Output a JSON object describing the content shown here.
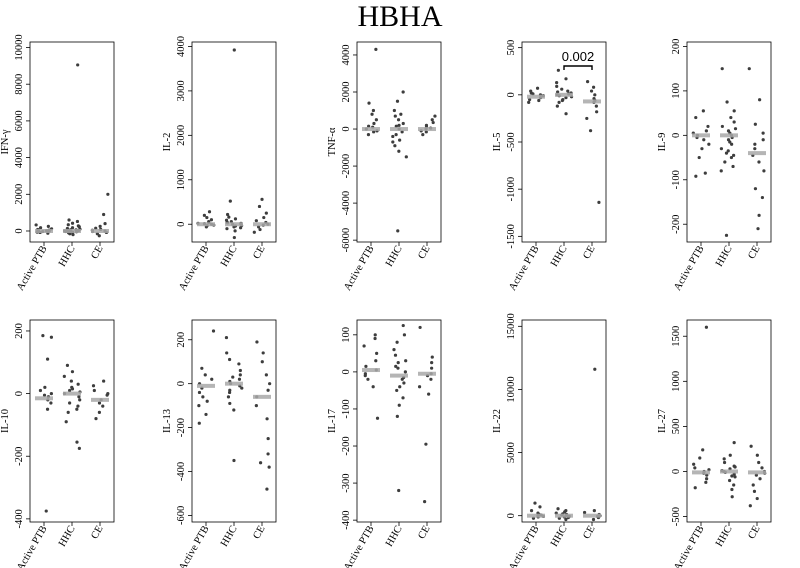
{
  "title": "HBHA",
  "colors": {
    "point": "#3d3d3d",
    "median": "#a8a8a8",
    "frame": "#000000"
  },
  "chart_data": [
    {
      "type": "scatter",
      "ylabel": "IFN-γ",
      "categories": [
        "Active PTB",
        "HHC",
        "CE"
      ],
      "ylim": [
        -600,
        10300
      ],
      "yticks": [
        0,
        2000,
        4000,
        6000,
        8000,
        10000
      ],
      "medians": [
        0,
        0,
        0
      ],
      "series": [
        {
          "values": [
            -120,
            -60,
            -30,
            0,
            20,
            50,
            80,
            120,
            180,
            250,
            330,
            -80,
            10
          ]
        },
        {
          "values": [
            -200,
            -150,
            -100,
            -60,
            -30,
            0,
            20,
            40,
            70,
            100,
            140,
            180,
            230,
            280,
            340,
            420,
            520,
            600,
            9050,
            -80,
            -40,
            10,
            60
          ]
        },
        {
          "values": [
            -260,
            -150,
            -80,
            -30,
            0,
            40,
            90,
            150,
            250,
            400,
            900,
            2000
          ]
        }
      ]
    },
    {
      "type": "scatter",
      "ylabel": "IL-2",
      "categories": [
        "Active PTB",
        "HHC",
        "CE"
      ],
      "ylim": [
        -400,
        4100
      ],
      "yticks": [
        0,
        1000,
        2000,
        3000,
        4000
      ],
      "medians": [
        0,
        0,
        0
      ],
      "series": [
        {
          "values": [
            -60,
            -30,
            0,
            20,
            40,
            60,
            100,
            150,
            200,
            280,
            -20,
            10
          ]
        },
        {
          "values": [
            -300,
            -150,
            -100,
            -60,
            -30,
            0,
            20,
            40,
            60,
            90,
            120,
            160,
            220,
            520,
            3920,
            -80,
            -40,
            10,
            30
          ]
        },
        {
          "values": [
            -180,
            -120,
            -60,
            -20,
            0,
            40,
            80,
            150,
            250,
            400,
            560
          ]
        }
      ]
    },
    {
      "type": "scatter",
      "ylabel": "TNF-α",
      "categories": [
        "Active PTB",
        "HHC",
        "CE"
      ],
      "ylim": [
        -6100,
        4700
      ],
      "yticks": [
        -6000,
        -4000,
        -2000,
        0,
        2000,
        4000
      ],
      "medians": [
        0,
        0,
        0
      ],
      "series": [
        {
          "values": [
            -300,
            -150,
            0,
            150,
            300,
            500,
            800,
            1000,
            1400,
            4300,
            -100,
            100
          ]
        },
        {
          "values": [
            -5500,
            -1500,
            -1200,
            -900,
            -600,
            -300,
            -150,
            0,
            150,
            300,
            500,
            700,
            1000,
            1500,
            2000,
            -400,
            200,
            -700,
            800
          ]
        },
        {
          "values": [
            -300,
            -150,
            0,
            100,
            200,
            350,
            500,
            700,
            -100,
            50
          ]
        }
      ]
    },
    {
      "type": "scatter",
      "ylabel": "IL-5",
      "categories": [
        "Active PTB",
        "HHC",
        "CE"
      ],
      "ylim": [
        -1560,
        560
      ],
      "yticks": [
        -1500,
        -1000,
        -500,
        0,
        500
      ],
      "medians": [
        -20,
        0,
        -70
      ],
      "annotation": {
        "text": "0.002",
        "from": 1,
        "to": 2
      },
      "series": [
        {
          "values": [
            -80,
            -50,
            -30,
            -10,
            0,
            20,
            40,
            70,
            -60,
            10
          ]
        },
        {
          "values": [
            -200,
            -120,
            -80,
            -50,
            -30,
            -10,
            0,
            20,
            40,
            60,
            90,
            130,
            170,
            260,
            -60,
            10,
            30,
            -20
          ]
        },
        {
          "values": [
            -1140,
            -380,
            -250,
            -180,
            -120,
            -80,
            -40,
            0,
            40,
            80,
            140,
            -60
          ]
        }
      ]
    },
    {
      "type": "scatter",
      "ylabel": "IL-9",
      "categories": [
        "Active PTB",
        "HHC",
        "CE"
      ],
      "ylim": [
        -240,
        210
      ],
      "yticks": [
        -200,
        -100,
        0,
        100,
        200
      ],
      "medians": [
        0,
        0,
        -40
      ],
      "series": [
        {
          "values": [
            -92,
            -85,
            -50,
            -30,
            -20,
            -5,
            0,
            10,
            20,
            40,
            55,
            -10,
            5
          ]
        },
        {
          "values": [
            -225,
            -80,
            -70,
            -60,
            -50,
            -40,
            -30,
            -20,
            -10,
            0,
            10,
            20,
            30,
            40,
            55,
            75,
            150,
            -15,
            -5,
            5,
            15,
            -35,
            -45
          ]
        },
        {
          "values": [
            -210,
            -180,
            -140,
            -120,
            -80,
            -60,
            -45,
            -30,
            -20,
            -10,
            5,
            25,
            80,
            150
          ]
        }
      ]
    },
    {
      "type": "scatter",
      "ylabel": "IL-10",
      "categories": [
        "Active PTB",
        "HHC",
        "CE"
      ],
      "ylim": [
        -410,
        235
      ],
      "yticks": [
        -400,
        -200,
        0,
        200
      ],
      "medians": [
        -15,
        0,
        -20
      ],
      "series": [
        {
          "values": [
            -375,
            -50,
            -30,
            -20,
            -10,
            0,
            10,
            20,
            110,
            180,
            185,
            -5
          ]
        },
        {
          "values": [
            -175,
            -155,
            -90,
            -60,
            -40,
            -20,
            -10,
            0,
            10,
            20,
            30,
            40,
            55,
            70,
            90,
            -30,
            5,
            15,
            -50
          ]
        },
        {
          "values": [
            -80,
            -60,
            -40,
            -20,
            -5,
            10,
            25,
            40,
            -30,
            0
          ]
        }
      ]
    },
    {
      "type": "scatter",
      "ylabel": "IL-13",
      "categories": [
        "Active PTB",
        "HHC",
        "CE"
      ],
      "ylim": [
        -630,
        290
      ],
      "yticks": [
        -600,
        -400,
        -200,
        0,
        200
      ],
      "medians": [
        -10,
        0,
        -60
      ],
      "series": [
        {
          "values": [
            -180,
            -140,
            -100,
            -60,
            -40,
            -20,
            0,
            20,
            40,
            70,
            240,
            -80
          ]
        },
        {
          "values": [
            -350,
            -120,
            -90,
            -60,
            -40,
            -20,
            0,
            20,
            40,
            60,
            90,
            110,
            140,
            210,
            -10,
            10,
            -30,
            30
          ]
        },
        {
          "values": [
            -480,
            -380,
            -360,
            -320,
            -250,
            -160,
            -100,
            -60,
            -30,
            0,
            40,
            100,
            140,
            190
          ]
        }
      ]
    },
    {
      "type": "scatter",
      "ylabel": "IL-17",
      "categories": [
        "Active PTB",
        "HHC",
        "CE"
      ],
      "ylim": [
        -405,
        140
      ],
      "yticks": [
        -400,
        -300,
        -200,
        -100,
        0,
        100
      ],
      "medians": [
        5,
        -10,
        -5
      ],
      "series": [
        {
          "values": [
            -125,
            -40,
            -20,
            -5,
            5,
            15,
            30,
            50,
            70,
            90,
            100,
            -10
          ]
        },
        {
          "values": [
            -320,
            -120,
            -90,
            -70,
            -50,
            -30,
            -15,
            0,
            15,
            30,
            45,
            60,
            80,
            100,
            125,
            -40,
            -20,
            10,
            25
          ]
        },
        {
          "values": [
            -350,
            -195,
            -60,
            -40,
            -20,
            -5,
            10,
            25,
            40,
            120,
            -10
          ]
        }
      ]
    },
    {
      "type": "scatter",
      "ylabel": "IL-22",
      "categories": [
        "Active PTB",
        "HHC",
        "CE"
      ],
      "ylim": [
        -500,
        15500
      ],
      "yticks": [
        0,
        5000,
        10000,
        15000
      ],
      "medians": [
        0,
        0,
        0
      ],
      "series": [
        {
          "values": [
            -200,
            -100,
            0,
            100,
            200,
            400,
            700,
            1000,
            -50,
            50
          ]
        },
        {
          "values": [
            -300,
            -200,
            -100,
            -50,
            0,
            50,
            100,
            200,
            300,
            400,
            550,
            -150,
            150
          ]
        },
        {
          "values": [
            -300,
            -150,
            0,
            100,
            250,
            400,
            11600,
            -50
          ]
        }
      ]
    },
    {
      "type": "scatter",
      "ylabel": "IL-27",
      "categories": [
        "Active PTB",
        "HHC",
        "CE"
      ],
      "ylim": [
        -560,
        1680
      ],
      "yticks": [
        -500,
        0,
        500,
        1000,
        1500
      ],
      "medians": [
        -10,
        0,
        -10
      ],
      "series": [
        {
          "values": [
            -180,
            -120,
            -80,
            -40,
            0,
            40,
            80,
            150,
            240,
            1600,
            -20,
            20
          ]
        },
        {
          "values": [
            -280,
            -200,
            -150,
            -100,
            -60,
            -30,
            0,
            30,
            60,
            100,
            140,
            180,
            320,
            -10,
            10,
            -50,
            50
          ]
        },
        {
          "values": [
            -380,
            -300,
            -220,
            -150,
            -80,
            -40,
            0,
            40,
            100,
            180,
            280,
            -20
          ]
        }
      ]
    }
  ]
}
